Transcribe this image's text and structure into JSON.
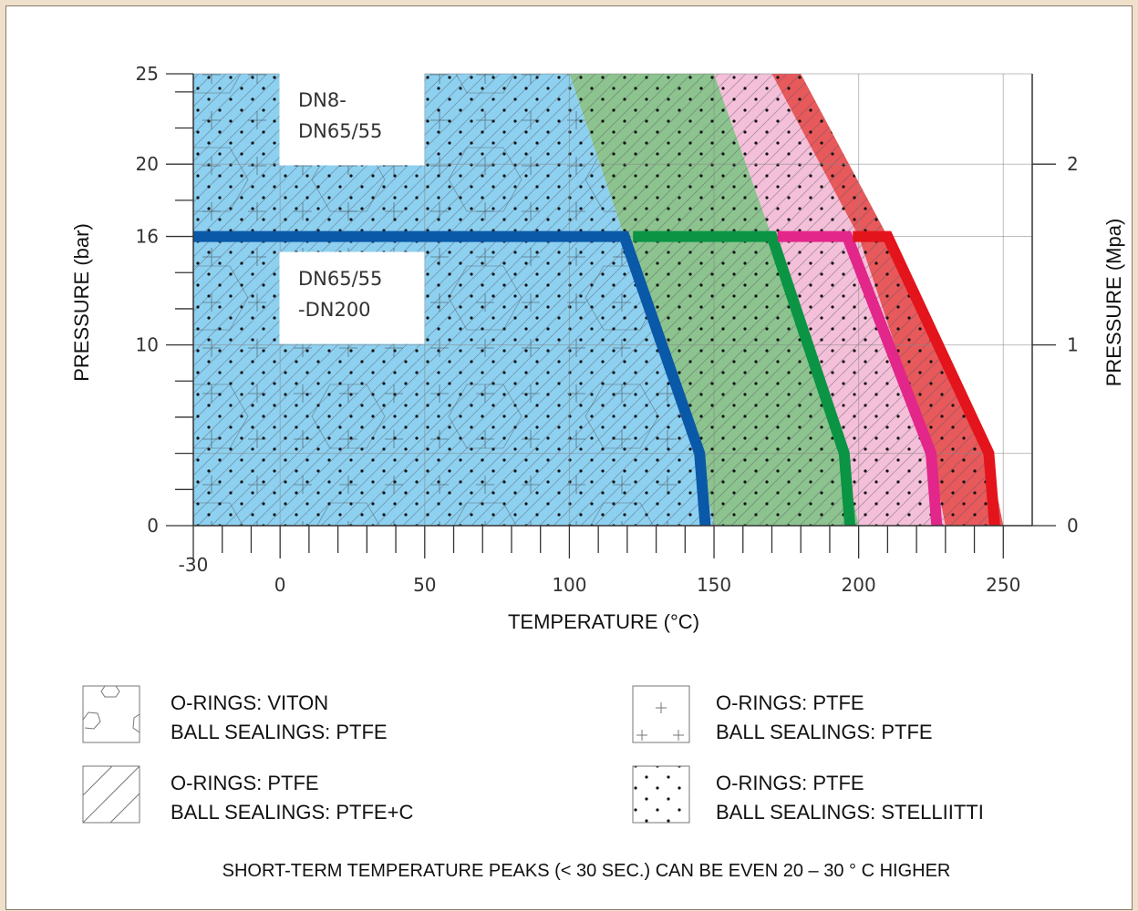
{
  "chart_data": {
    "type": "area",
    "xlabel": "TEMPERATURE (°C)",
    "ylabel": "PRESSURE (bar)",
    "ylabel_right": "PRESSURE (Mpa)",
    "xlim": [
      -30,
      260
    ],
    "ylim": [
      0,
      25
    ],
    "x_ticks": [
      -30,
      0,
      50,
      100,
      150,
      200,
      250
    ],
    "y_ticks": [
      0,
      10,
      16,
      20,
      25
    ],
    "y_right_ticks": [
      0,
      1,
      2
    ],
    "grid": true,
    "regions": [
      {
        "color": "#8dd0f0",
        "pattern": "mixed",
        "points": [
          [
            -30,
            0
          ],
          [
            -30,
            25
          ],
          [
            100,
            25
          ],
          [
            119,
            16
          ],
          [
            145,
            4
          ],
          [
            150,
            0
          ]
        ]
      },
      {
        "color": "#8cc38e",
        "pattern": "dots",
        "points": [
          [
            100,
            25
          ],
          [
            150,
            25
          ],
          [
            170,
            16
          ],
          [
            195,
            4
          ],
          [
            200,
            0
          ],
          [
            150,
            0
          ],
          [
            145,
            4
          ],
          [
            119,
            16
          ]
        ]
      },
      {
        "color": "#f4bfd8",
        "pattern": "dots",
        "points": [
          [
            150,
            25
          ],
          [
            170,
            25
          ],
          [
            200,
            16
          ],
          [
            225,
            4
          ],
          [
            230,
            0
          ],
          [
            200,
            0
          ],
          [
            195,
            4
          ],
          [
            170,
            16
          ]
        ]
      },
      {
        "color": "#e7595b",
        "pattern": "dots",
        "points": [
          [
            170,
            25
          ],
          [
            180,
            25
          ],
          [
            210,
            16
          ],
          [
            245,
            4
          ],
          [
            250,
            0
          ],
          [
            230,
            0
          ],
          [
            225,
            4
          ],
          [
            200,
            16
          ]
        ]
      }
    ],
    "series": [
      {
        "color": "#0a58a8",
        "values": [
          [
            -30,
            16
          ],
          [
            119,
            16
          ],
          [
            145,
            4
          ],
          [
            147,
            0
          ]
        ]
      },
      {
        "color": "#0a9444",
        "values": [
          [
            122,
            16
          ],
          [
            170,
            16
          ],
          [
            195,
            4
          ],
          [
            197,
            0
          ]
        ]
      },
      {
        "color": "#e2268a",
        "values": [
          [
            172,
            16
          ],
          [
            196,
            16
          ],
          [
            225,
            4
          ],
          [
            227,
            0
          ]
        ]
      },
      {
        "color": "#e3141b",
        "values": [
          [
            198,
            16
          ],
          [
            210,
            16
          ],
          [
            245,
            4
          ],
          [
            247,
            0
          ]
        ]
      }
    ],
    "annotations": [
      {
        "lines": [
          "DN8-",
          "DN65/55"
        ]
      },
      {
        "lines": [
          "DN65/55",
          "-DN200"
        ]
      }
    ]
  },
  "legend": [
    {
      "symbol": "hexagon",
      "line1": "O-RINGS: VITON",
      "line2": "BALL SEALINGS: PTFE"
    },
    {
      "symbol": "plus",
      "line1": "O-RINGS: PTFE",
      "line2": "BALL SEALINGS: PTFE"
    },
    {
      "symbol": "diagonal",
      "line1": "O-RINGS: PTFE",
      "line2": "BALL SEALINGS: PTFE+C"
    },
    {
      "symbol": "dots",
      "line1": "O-RINGS: PTFE",
      "line2": "BALL SEALINGS: STELLIITTI"
    }
  ],
  "footnote": "SHORT-TERM TEMPERATURE PEAKS (< 30 SEC.) CAN BE EVEN 20 – 30 ° C HIGHER"
}
